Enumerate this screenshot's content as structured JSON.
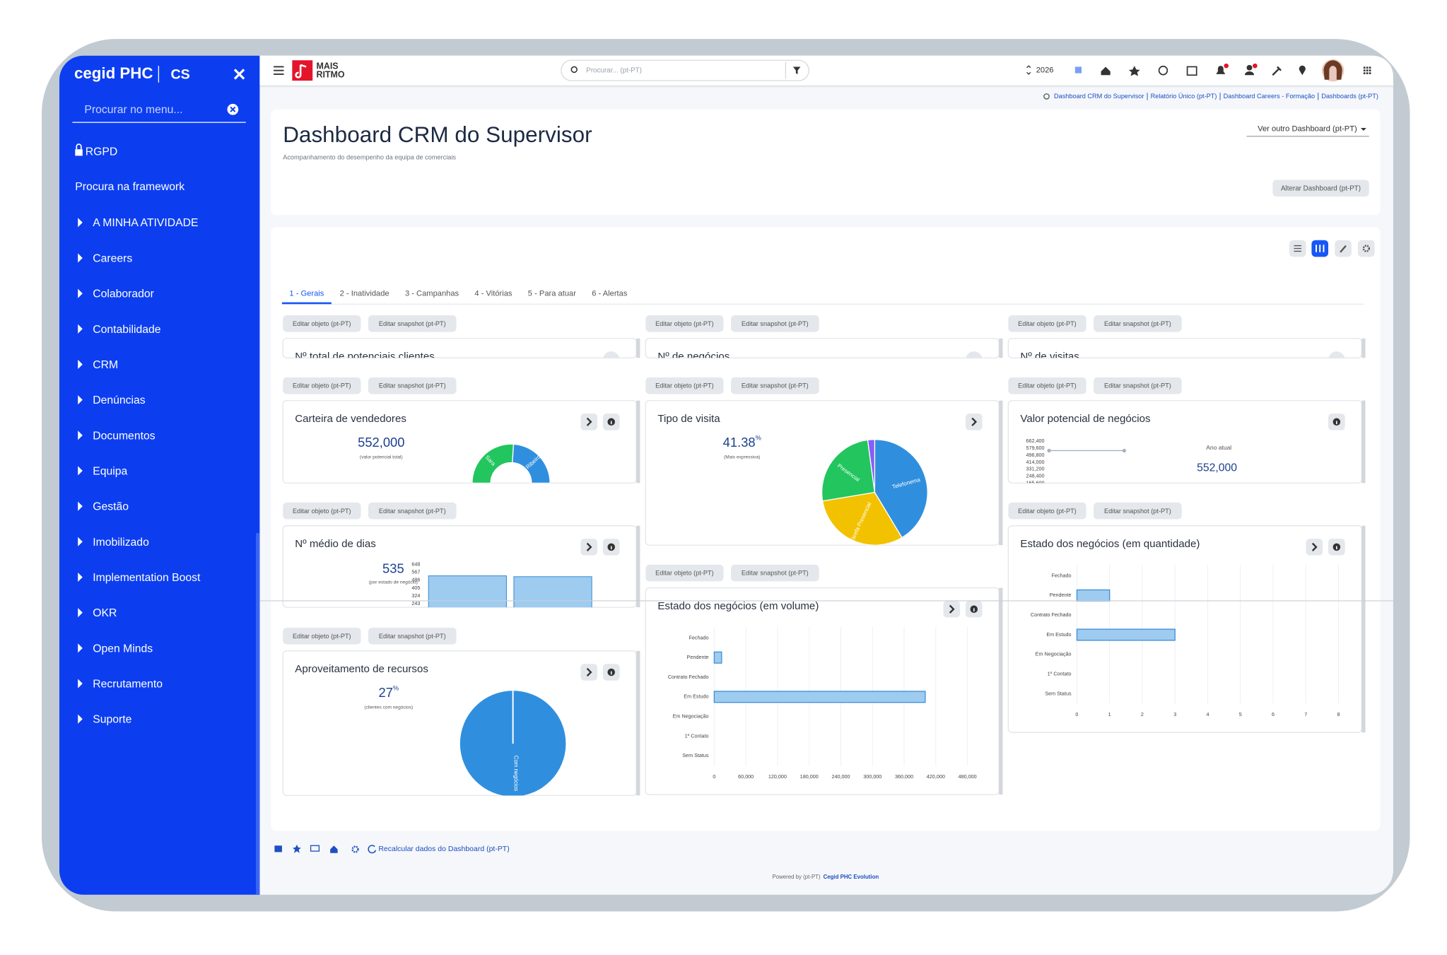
{
  "sidebar": {
    "brand": "cegid PHC",
    "module": "CS",
    "search_placeholder": "Procurar no menu...",
    "top_items": [
      "RGPD",
      "Procura na framework"
    ],
    "menu": [
      "A MINHA ATIVIDADE",
      "Careers",
      "Colaborador",
      "Contabilidade",
      "CRM",
      "Denúncias",
      "Documentos",
      "Equipa",
      "Gestão",
      "Imobilizado",
      "Implementation Boost",
      "OKR",
      "Open Minds",
      "Recrutamento",
      "Suporte"
    ]
  },
  "topbar": {
    "logo_line1": "MAIS",
    "logo_line2": "RITMO",
    "search_placeholder": "Procurar... (pt-PT)",
    "year": "2026"
  },
  "breadcrumb": [
    "Dashboard CRM do Supervisor",
    "Relatório Único (pt-PT)",
    "Dashboard Careers - Formação",
    "Dashboards (pt-PT)"
  ],
  "header": {
    "title": "Dashboard CRM do Supervisor",
    "subtitle": "Acompanhamento do desempenho da equipa de comerciais",
    "other_dashboard": "Ver outro Dashboard (pt-PT)",
    "change_button": "Alterar Dashboard (pt-PT)"
  },
  "tabs": [
    "1 - Gerais",
    "2 - Inatividade",
    "3 - Campanhas",
    "4 - Vitórias",
    "5 - Para atuar",
    "6 - Alertas"
  ],
  "widget_buttons": [
    "Editar objeto (pt-PT)",
    "Editar snapshot (pt-PT)"
  ],
  "widgets": [
    {
      "title": "Nº total de potenciais clientes"
    },
    {
      "title": "Nº de negócios"
    },
    {
      "title": "Nº de visitas"
    },
    {
      "title": "Carteira de vendedores",
      "kpi": {
        "value": 552000,
        "label": "552,000",
        "caption": "(valor potencial total)"
      },
      "chart": {
        "type": "donut",
        "categories": [
          "Sara",
          "Ribeiro"
        ],
        "values": [
          52,
          48
        ],
        "colors": [
          "#22c55e",
          "#2f8fde"
        ]
      }
    },
    {
      "title": "Tipo de visita",
      "kpi": {
        "value": 41.38,
        "unit": "%",
        "caption": "(Mais expressiva)"
      },
      "chart": {
        "type": "pie",
        "categories": [
          "Telefonema",
          "Tarefa Presencial",
          "Presencial",
          null
        ],
        "values": [
          41.38,
          31,
          25.5,
          2.12
        ],
        "colors": [
          "#2f8fde",
          "#f2c200",
          "#22c55e",
          "#8b5cf6"
        ]
      }
    },
    {
      "title": "Valor potencial de negócios",
      "kpi": {
        "value": 552000,
        "label": "552,000"
      },
      "chart": {
        "type": "line",
        "categories": [
          null,
          null
        ],
        "series": [
          {
            "name": "Ano atual",
            "color": "#a7b0bb",
            "values": [
              552000,
              552000
            ]
          }
        ],
        "ylim": [
          165600,
          662400
        ],
        "yticks": [
          {
            "value": 662400,
            "label": "662,400"
          },
          {
            "value": 579600,
            "label": "579,600"
          },
          {
            "value": 496800,
            "label": "496,800"
          },
          {
            "value": 414000,
            "label": "414,000"
          },
          {
            "value": 331200,
            "label": "331,200"
          },
          {
            "value": 248400,
            "label": "248,400"
          },
          {
            "value": 165600,
            "label": "165,600"
          }
        ]
      }
    },
    {
      "title": "Nº médio de dias",
      "kpi": {
        "value": 535,
        "caption": "(por estado de negócio)"
      },
      "chart": {
        "type": "bar",
        "categories": [
          null,
          null
        ],
        "values": [
          532,
          523
        ],
        "color": "#9ecbf0",
        "ylim": [
          0,
          648
        ],
        "yticks": [
          648,
          567,
          486,
          405,
          324,
          243
        ]
      }
    },
    {
      "title": "Estado dos negócios (em quantidade)",
      "chart": {
        "type": "hbar",
        "categories": [
          "Fechado",
          "Pendente",
          "Contrato Fechado",
          "Em Estudo",
          "Em Negociação",
          "1º Contato",
          "Sem Status"
        ],
        "values": [
          0,
          1,
          0,
          3,
          0,
          0,
          0
        ],
        "color": "#9ecbf0",
        "xlim": [
          0,
          8
        ],
        "xticks": [
          0,
          1,
          2,
          3,
          4,
          5,
          6,
          7,
          8
        ],
        "grid": true
      }
    },
    {
      "title": "Estado dos negócios (em volume)",
      "chart": {
        "type": "hbar",
        "categories": [
          "Fechado",
          "Pendente",
          "Contrato Fechado",
          "Em Estudo",
          "Em Negociação",
          "1º Contato",
          "Sem Status"
        ],
        "values": [
          0,
          14000,
          0,
          400000,
          0,
          0,
          0
        ],
        "color": "#9ecbf0",
        "xlim": [
          0,
          480000
        ],
        "xticks": [
          0,
          {
            "value": 60000,
            "label": "60,000"
          },
          {
            "value": 120000,
            "label": "120,000"
          },
          {
            "value": 180000,
            "label": "180,000"
          },
          {
            "value": 240000,
            "label": "240,000"
          },
          {
            "value": 300000,
            "label": "300,000"
          },
          {
            "value": 360000,
            "label": "360,000"
          },
          {
            "value": 420000,
            "label": "420,000"
          },
          {
            "value": 480000,
            "label": "480,000"
          }
        ],
        "grid": true
      }
    },
    {
      "title": "Aproveitamento de recursos",
      "kpi": {
        "value": 27,
        "unit": "%",
        "caption": "(clientes com negócios)"
      },
      "chart": {
        "type": "pie",
        "categories": [
          "Com negócios"
        ],
        "values": [
          100
        ],
        "colors": [
          "#2f8fde"
        ]
      }
    }
  ],
  "footer": {
    "recalc": "Recalcular dados do Dashboard (pt-PT)",
    "powered": "Powered by (pt-PT)",
    "product": "Cegid PHC Evolution"
  }
}
